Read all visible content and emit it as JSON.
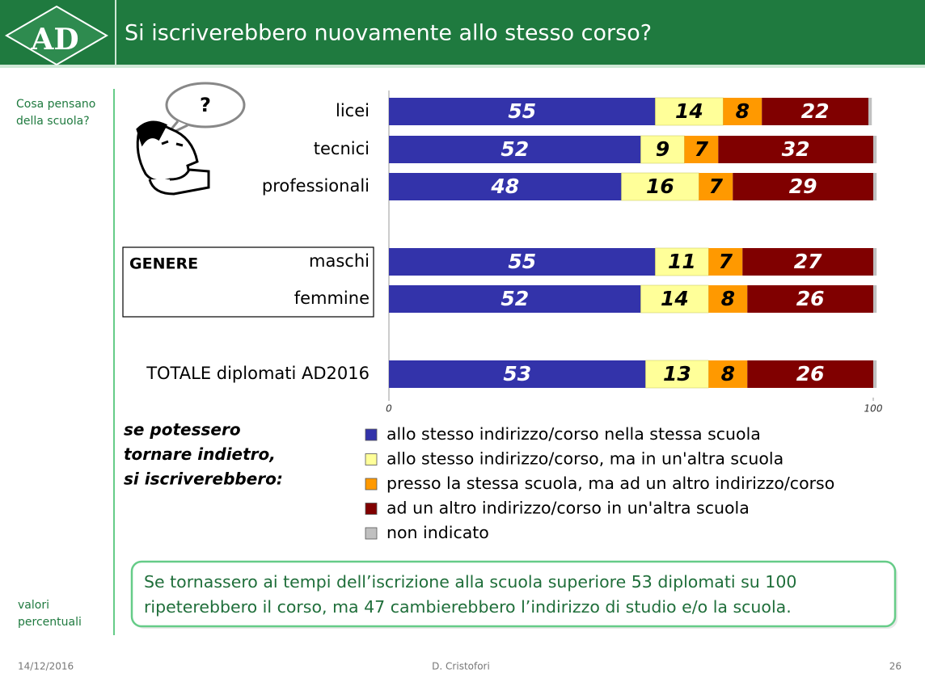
{
  "header": {
    "logo": "AD",
    "title": "Si iscriverebbero nuovamente allo stesso corso?"
  },
  "sidebar": {
    "top": [
      "Cosa pensano",
      "della scuola?"
    ],
    "bottom": [
      "valori",
      "percentuali"
    ]
  },
  "cartoon": {
    "bubble_text": "?"
  },
  "group_box": {
    "label": "GENERE"
  },
  "chart_data": {
    "type": "stacked-bar-horizontal",
    "categories": [
      "licei",
      "tecnici",
      "professionali",
      "maschi",
      "femmine",
      "TOTALE diplomati AD2016"
    ],
    "series": [
      {
        "name": "allo stesso indirizzo/corso nella stessa scuola",
        "color": "#3333aa",
        "label_color": "#ffffff",
        "data_labels": true,
        "values": [
          55,
          52,
          48,
          55,
          52,
          53
        ]
      },
      {
        "name": "allo stesso indirizzo/corso, ma in un'altra scuola",
        "color": "#ffff99",
        "label_color": "#000000",
        "data_labels": true,
        "values": [
          14,
          9,
          16,
          11,
          14,
          13
        ]
      },
      {
        "name": "presso la stessa scuola, ma ad un altro indirizzo/corso",
        "color": "#ff9900",
        "label_color": "#000000",
        "data_labels": true,
        "values": [
          8,
          7,
          7,
          7,
          8,
          8
        ]
      },
      {
        "name": "ad un altro indirizzo/corso in un'altra scuola",
        "color": "#800000",
        "label_color": "#ffffff",
        "data_labels": true,
        "values": [
          22,
          32,
          29,
          27,
          26,
          26
        ]
      },
      {
        "name": "non indicato",
        "color": "#c0c0c0",
        "label_color": "#000000",
        "data_labels": false,
        "values": [
          0.7,
          0.7,
          0.7,
          0.7,
          0.7,
          0.7
        ]
      }
    ],
    "xlim": [
      0,
      100
    ],
    "xticks": [
      0,
      100
    ],
    "legend_title": [
      "se potessero",
      "tornare indietro,",
      "si iscriverebbero:"
    ]
  },
  "note": [
    "Se tornassero ai tempi dell’iscrizione alla scuola superiore 53 diplomati su 100",
    "ripeterebbero il corso, ma 47 cambierebbero l’indirizzo di studio e/o la scuola."
  ],
  "footer": {
    "date": "14/12/2016",
    "author": "D. Cristofori",
    "page": "26"
  }
}
